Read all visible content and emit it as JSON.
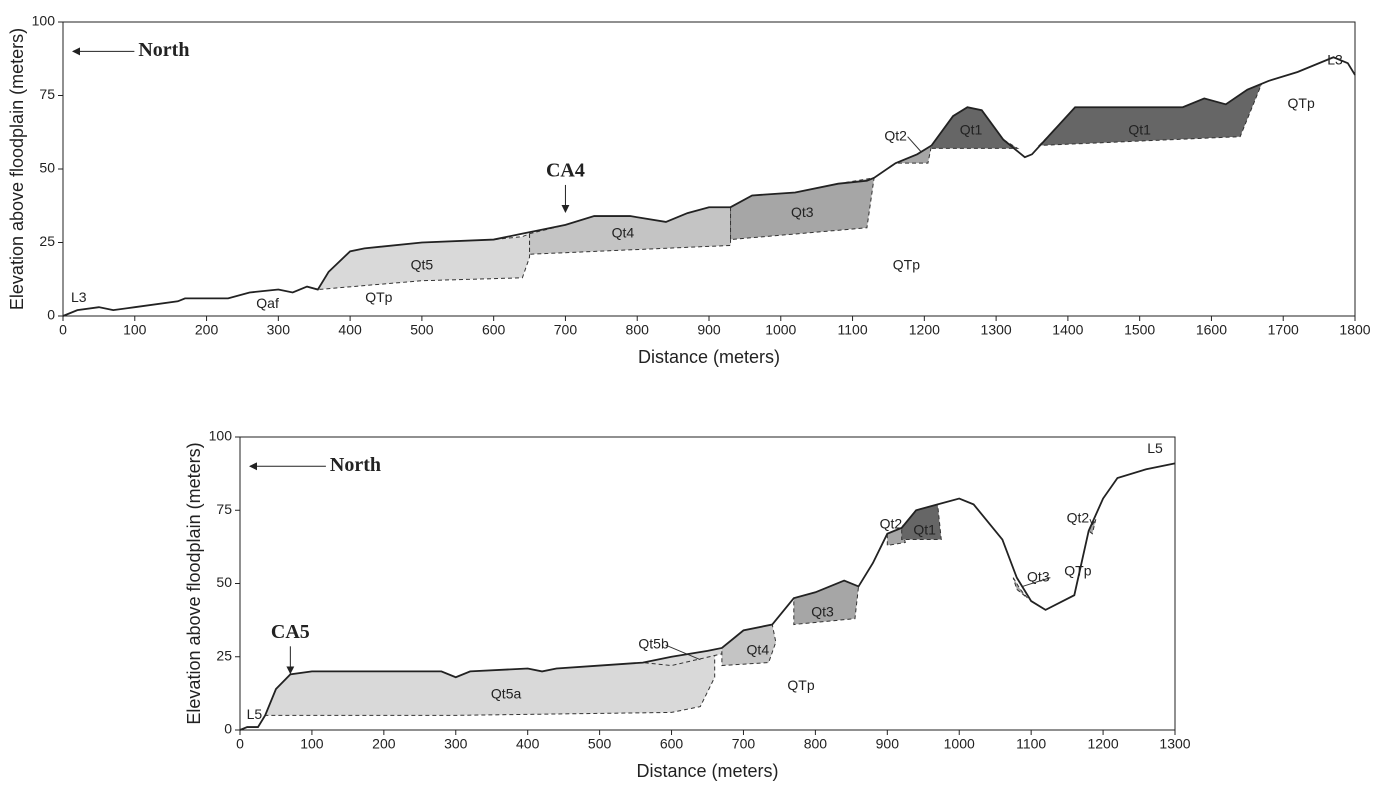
{
  "chart_data": [
    {
      "type": "line",
      "x_label": "Distance (meters)",
      "y_label": "Elevation above floodplain (meters)",
      "xlim": [
        0,
        1800
      ],
      "ylim": [
        0,
        100
      ],
      "xticks": [
        0,
        100,
        200,
        300,
        400,
        500,
        600,
        700,
        800,
        900,
        1000,
        1100,
        1200,
        1300,
        1400,
        1500,
        1600,
        1700,
        1800
      ],
      "yticks": [
        0,
        25,
        50,
        75,
        100
      ],
      "series": [
        {
          "name": "L3",
          "color": "#222222",
          "x": [
            0,
            20,
            50,
            70,
            100,
            160,
            170,
            230,
            260,
            300,
            320,
            340,
            355,
            370,
            400,
            420,
            500,
            600,
            640,
            660,
            700,
            740,
            790,
            840,
            870,
            900,
            930,
            960,
            1020,
            1080,
            1120,
            1130,
            1160,
            1190,
            1210,
            1240,
            1260,
            1280,
            1310,
            1340,
            1350,
            1380,
            1410,
            1500,
            1560,
            1590,
            1620,
            1650,
            1680,
            1720,
            1770,
            1790,
            1800
          ],
          "values": [
            0,
            2,
            3,
            2,
            3,
            5,
            6,
            6,
            8,
            9,
            8,
            10,
            9,
            15,
            22,
            23,
            25,
            26,
            28,
            29,
            31,
            34,
            34,
            32,
            35,
            37,
            37,
            41,
            42,
            45,
            46,
            47,
            52,
            55,
            58,
            68,
            71,
            70,
            60,
            54,
            55,
            63,
            71,
            71,
            71,
            74,
            72,
            77,
            80,
            83,
            88,
            86,
            82
          ]
        }
      ],
      "units": [
        {
          "name": "Qt5",
          "color": "#d9d9d9",
          "x": [
            355,
            370,
            400,
            420,
            500,
            600,
            640,
            650,
            650,
            640,
            500,
            355
          ],
          "y": [
            9,
            15,
            22,
            23,
            25,
            26,
            27,
            28,
            20,
            13,
            12,
            9
          ]
        },
        {
          "name": "Qt4",
          "color": "#c4c4c4",
          "x": [
            650,
            700,
            740,
            790,
            840,
            870,
            900,
            930,
            930,
            650
          ],
          "y": [
            28,
            31,
            34,
            34,
            32,
            35,
            37,
            37,
            24,
            21
          ]
        },
        {
          "name": "Qt3",
          "color": "#a6a6a6",
          "x": [
            930,
            960,
            1020,
            1080,
            1130,
            1120,
            930
          ],
          "y": [
            37,
            41,
            42,
            45,
            47,
            30,
            26
          ]
        },
        {
          "name": "Qt2",
          "color": "#a6a6a6",
          "x": [
            1160,
            1190,
            1210,
            1205,
            1170
          ],
          "y": [
            52,
            55,
            58,
            52,
            52
          ]
        },
        {
          "name": "Qt1",
          "color": "#666666",
          "x": [
            1210,
            1240,
            1260,
            1280,
            1310,
            1330,
            1210
          ],
          "y": [
            58,
            68,
            71,
            70,
            60,
            57,
            57
          ]
        },
        {
          "name": "Qt1",
          "color": "#666666",
          "x": [
            1360,
            1380,
            1410,
            1500,
            1560,
            1590,
            1620,
            1650,
            1670,
            1640,
            1360
          ],
          "y": [
            58,
            63,
            71,
            71,
            71,
            74,
            72,
            77,
            79,
            61,
            58
          ]
        }
      ],
      "annotations": [
        "North",
        "CA4",
        "L3",
        "Qaf",
        "QTp",
        "QTp",
        "QTp"
      ]
    },
    {
      "type": "line",
      "x_label": "Distance (meters)",
      "y_label": "Elevation above floodplain (meters)",
      "xlim": [
        0,
        1300
      ],
      "ylim": [
        0,
        100
      ],
      "xticks": [
        0,
        100,
        200,
        300,
        400,
        500,
        600,
        700,
        800,
        900,
        1000,
        1100,
        1200,
        1300
      ],
      "yticks": [
        0,
        25,
        50,
        75,
        100
      ],
      "series": [
        {
          "name": "L5",
          "color": "#222222",
          "x": [
            0,
            10,
            25,
            35,
            50,
            70,
            100,
            280,
            300,
            320,
            400,
            420,
            440,
            500,
            560,
            600,
            650,
            670,
            690,
            700,
            740,
            770,
            800,
            840,
            860,
            880,
            900,
            920,
            940,
            970,
            1000,
            1020,
            1060,
            1080,
            1100,
            1120,
            1160,
            1180,
            1200,
            1220,
            1260,
            1300
          ],
          "values": [
            0,
            1,
            1,
            5,
            14,
            19,
            20,
            20,
            18,
            20,
            21,
            20,
            21,
            22,
            23,
            25,
            27,
            28,
            32,
            34,
            36,
            45,
            47,
            51,
            49,
            57,
            67,
            69,
            75,
            77,
            79,
            77,
            65,
            52,
            44,
            41,
            46,
            68,
            79,
            86,
            89,
            91
          ]
        }
      ],
      "units": [
        {
          "name": "Qt5a",
          "color": "#d9d9d9",
          "x": [
            35,
            50,
            70,
            100,
            280,
            300,
            320,
            400,
            420,
            440,
            500,
            560,
            600,
            650,
            660,
            660,
            640,
            600,
            300,
            35
          ],
          "y": [
            5,
            14,
            19,
            20,
            20,
            18,
            20,
            21,
            20,
            21,
            22,
            23,
            24,
            26,
            26,
            18,
            8,
            6,
            5,
            5
          ]
        },
        {
          "name": "Qt5b",
          "color": "#d9d9d9",
          "x": [
            560,
            600,
            650,
            670,
            670,
            600
          ],
          "y": [
            23,
            25,
            27,
            28,
            26,
            22
          ]
        },
        {
          "name": "Qt4",
          "color": "#c4c4c4",
          "x": [
            670,
            690,
            700,
            740,
            745,
            735,
            670
          ],
          "y": [
            28,
            32,
            34,
            36,
            30,
            23,
            22
          ]
        },
        {
          "name": "Qt3",
          "color": "#a6a6a6",
          "x": [
            770,
            800,
            840,
            860,
            855,
            770
          ],
          "y": [
            45,
            47,
            51,
            49,
            38,
            36
          ]
        },
        {
          "name": "Qt2",
          "color": "#a6a6a6",
          "x": [
            900,
            920,
            925,
            900
          ],
          "y": [
            67,
            69,
            64,
            63
          ]
        },
        {
          "name": "Qt1",
          "color": "#666666",
          "x": [
            920,
            940,
            970,
            975,
            920
          ],
          "y": [
            69,
            75,
            77,
            65,
            65
          ]
        },
        {
          "name": "Qt3",
          "color": "#a6a6a6",
          "x": [
            1075,
            1085,
            1095,
            1080
          ],
          "y": [
            52,
            48,
            45,
            48
          ]
        },
        {
          "name": "Qt2",
          "color": "#a6a6a6",
          "x": [
            1180,
            1190,
            1185
          ],
          "y": [
            68,
            72,
            67
          ]
        }
      ],
      "annotations": [
        "North",
        "CA5",
        "L5",
        "QTp",
        "QTp"
      ]
    }
  ]
}
